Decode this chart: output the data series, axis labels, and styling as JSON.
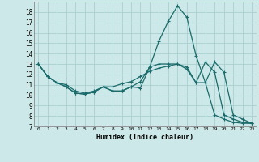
{
  "xlabel": "Humidex (Indice chaleur)",
  "background_color": "#cde8e8",
  "grid_color": "#aacfcf",
  "line_color": "#1a6b6b",
  "ylim": [
    7,
    19
  ],
  "xlim": [
    -0.5,
    23.5
  ],
  "yticks": [
    7,
    8,
    9,
    10,
    11,
    12,
    13,
    14,
    15,
    16,
    17,
    18
  ],
  "xticks": [
    0,
    1,
    2,
    3,
    4,
    5,
    6,
    7,
    8,
    9,
    10,
    11,
    12,
    13,
    14,
    15,
    16,
    17,
    18,
    19,
    20,
    21,
    22,
    23
  ],
  "line1_x": [
    0,
    1,
    2,
    3,
    4,
    5,
    6,
    7,
    8,
    9,
    10,
    11,
    12,
    13,
    14,
    15,
    16,
    17,
    18,
    19,
    20,
    21,
    22,
    23
  ],
  "line1_y": [
    13.0,
    11.8,
    11.2,
    10.8,
    10.2,
    10.1,
    10.3,
    10.8,
    10.4,
    10.4,
    10.8,
    10.7,
    12.7,
    15.2,
    17.1,
    18.6,
    17.5,
    13.8,
    11.2,
    13.2,
    12.2,
    8.1,
    7.7,
    7.3
  ],
  "line2_x": [
    0,
    1,
    2,
    3,
    4,
    5,
    6,
    7,
    8,
    9,
    10,
    11,
    12,
    13,
    14,
    15,
    16,
    17,
    18,
    19,
    20,
    21,
    22,
    23
  ],
  "line2_y": [
    13.0,
    11.8,
    11.2,
    10.8,
    10.2,
    10.1,
    10.3,
    10.8,
    10.4,
    10.4,
    10.8,
    11.3,
    12.7,
    13.0,
    13.0,
    13.0,
    12.7,
    11.2,
    13.2,
    12.2,
    8.1,
    7.7,
    7.4,
    7.3
  ],
  "line3_x": [
    0,
    1,
    2,
    3,
    4,
    5,
    6,
    7,
    8,
    9,
    10,
    11,
    12,
    13,
    14,
    15,
    16,
    17,
    18,
    19,
    20,
    21,
    22,
    23
  ],
  "line3_y": [
    13.0,
    11.8,
    11.2,
    11.0,
    10.4,
    10.2,
    10.4,
    10.8,
    10.8,
    11.1,
    11.3,
    11.8,
    12.3,
    12.6,
    12.8,
    13.0,
    12.5,
    11.2,
    11.2,
    8.1,
    7.7,
    7.4,
    7.3,
    7.3
  ]
}
